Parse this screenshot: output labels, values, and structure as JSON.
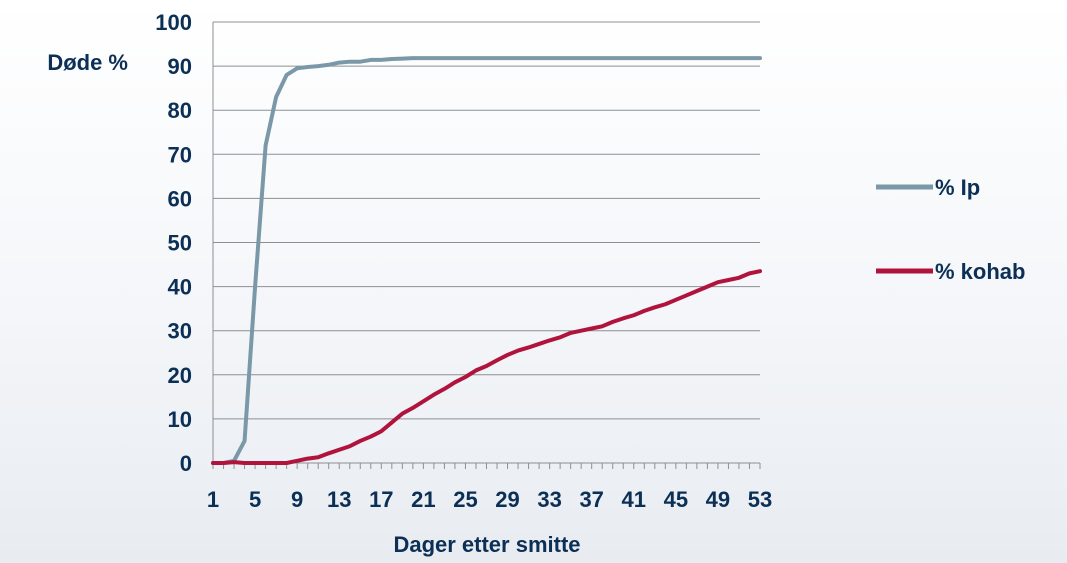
{
  "chart_data": {
    "type": "line",
    "ylabel": "Døde %",
    "xlabel": "Dager etter smitte",
    "ylim": [
      0,
      100
    ],
    "y_ticks": [
      0,
      10,
      20,
      30,
      40,
      50,
      60,
      70,
      80,
      90,
      100
    ],
    "x_range": [
      1,
      53
    ],
    "x_tick_labels": [
      "1",
      "5",
      "9",
      "13",
      "17",
      "21",
      "25",
      "29",
      "33",
      "37",
      "41",
      "45",
      "49",
      "53"
    ],
    "grid": "horizontal",
    "legend_position": "right",
    "x": [
      1,
      2,
      3,
      4,
      5,
      6,
      7,
      8,
      9,
      10,
      11,
      12,
      13,
      14,
      15,
      16,
      17,
      18,
      19,
      20,
      21,
      22,
      23,
      24,
      25,
      26,
      27,
      28,
      29,
      30,
      31,
      32,
      33,
      34,
      35,
      36,
      37,
      38,
      39,
      40,
      41,
      42,
      43,
      44,
      45,
      46,
      47,
      48,
      49,
      50,
      51,
      52,
      53
    ],
    "series": [
      {
        "name": "% Ip",
        "color": "#7a98a8",
        "values": [
          0,
          0,
          0.5,
          5,
          40,
          72,
          83,
          88,
          89.5,
          89.8,
          90,
          90.3,
          90.8,
          91,
          91,
          91.4,
          91.4,
          91.6,
          91.7,
          91.8,
          91.8,
          91.8,
          91.8,
          91.8,
          91.8,
          91.8,
          91.8,
          91.8,
          91.8,
          91.8,
          91.8,
          91.8,
          91.8,
          91.8,
          91.8,
          91.8,
          91.8,
          91.8,
          91.8,
          91.8,
          91.8,
          91.8,
          91.8,
          91.8,
          91.8,
          91.8,
          91.8,
          91.8,
          91.8,
          91.8,
          91.8,
          91.8,
          91.8
        ]
      },
      {
        "name": "% kohab",
        "color": "#b0143c",
        "values": [
          0,
          0,
          0.2,
          0,
          0,
          0,
          0,
          0,
          0.5,
          1,
          1.3,
          2.2,
          3,
          3.8,
          5,
          6,
          7.2,
          9.2,
          11.2,
          12.5,
          14,
          15.5,
          16.8,
          18.3,
          19.5,
          21,
          22,
          23.3,
          24.5,
          25.5,
          26.2,
          27,
          27.8,
          28.5,
          29.5,
          30,
          30.5,
          31,
          32,
          32.8,
          33.5,
          34.5,
          35.3,
          36,
          37,
          38,
          39,
          40,
          41,
          41.5,
          42,
          43,
          43.5
        ]
      }
    ]
  }
}
